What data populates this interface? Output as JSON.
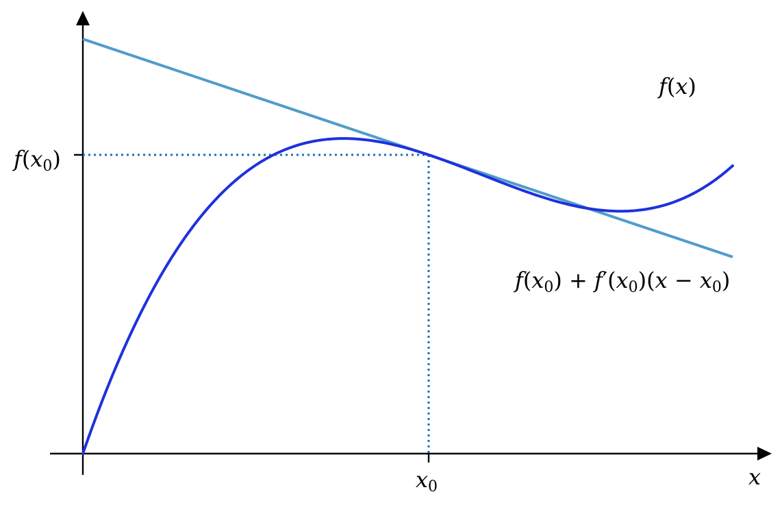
{
  "labels": {
    "x_axis": "x",
    "x0_tick": "x",
    "x0_tick_sub": "0",
    "fx0_tick": {
      "f": "f",
      "open": "(",
      "x": "x",
      "sub": "0",
      "close": ")"
    },
    "curve": {
      "f": "f",
      "open": "(",
      "x": "x",
      "close": ")"
    },
    "tangent": {
      "part1": "f",
      "part2": "(",
      "part3": "x",
      "part3_sub": "0",
      "part4": ") + ",
      "part5": "f",
      "part6": "′(",
      "part7": "x",
      "part7_sub": "0",
      "part8": ")(",
      "part9": "x",
      "part10": " − ",
      "part11": "x",
      "part11_sub": "0",
      "part12": ")"
    }
  },
  "colors": {
    "axes": "#000000",
    "curve": "#1f31dc",
    "tangent": "#4f9dcc",
    "guides": "#1f6fb0"
  },
  "curve": {
    "function": "cubic",
    "point_of_tangency_x": 0.53,
    "local_max_x": 0.45,
    "local_min_x": 0.775
  }
}
